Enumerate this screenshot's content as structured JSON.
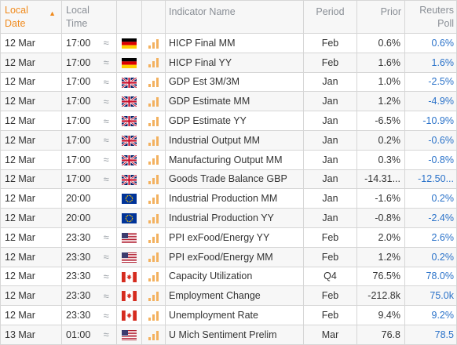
{
  "header": {
    "local_date": "Local Date",
    "local_time": "Local Time",
    "indicator_name": "Indicator Name",
    "period": "Period",
    "prior": "Prior",
    "reuters_poll": "Reuters Poll"
  },
  "rows": [
    {
      "date": "12 Mar",
      "time": "17:00",
      "approx": "≈",
      "flag": "de",
      "impact": 3,
      "name": "HICP Final MM",
      "period": "Feb",
      "prior": "0.6%",
      "poll": "0.6%"
    },
    {
      "date": "12 Mar",
      "time": "17:00",
      "approx": "≈",
      "flag": "de",
      "impact": 3,
      "name": "HICP Final YY",
      "period": "Feb",
      "prior": "1.6%",
      "poll": "1.6%"
    },
    {
      "date": "12 Mar",
      "time": "17:00",
      "approx": "≈",
      "flag": "gb",
      "impact": 3,
      "name": "GDP Est 3M/3M",
      "period": "Jan",
      "prior": "1.0%",
      "poll": "-2.5%"
    },
    {
      "date": "12 Mar",
      "time": "17:00",
      "approx": "≈",
      "flag": "gb",
      "impact": 3,
      "name": "GDP Estimate MM",
      "period": "Jan",
      "prior": "1.2%",
      "poll": "-4.9%"
    },
    {
      "date": "12 Mar",
      "time": "17:00",
      "approx": "≈",
      "flag": "gb",
      "impact": 3,
      "name": "GDP Estimate YY",
      "period": "Jan",
      "prior": "-6.5%",
      "poll": "-10.9%"
    },
    {
      "date": "12 Mar",
      "time": "17:00",
      "approx": "≈",
      "flag": "gb",
      "impact": 3,
      "name": "Industrial Output MM",
      "period": "Jan",
      "prior": "0.2%",
      "poll": "-0.6%"
    },
    {
      "date": "12 Mar",
      "time": "17:00",
      "approx": "≈",
      "flag": "gb",
      "impact": 3,
      "name": "Manufacturing Output MM",
      "period": "Jan",
      "prior": "0.3%",
      "poll": "-0.8%"
    },
    {
      "date": "12 Mar",
      "time": "17:00",
      "approx": "≈",
      "flag": "gb",
      "impact": 3,
      "name": "Goods Trade Balance GBP",
      "period": "Jan",
      "prior": "-14.31...",
      "poll": "-12.50..."
    },
    {
      "date": "12 Mar",
      "time": "20:00",
      "approx": "",
      "flag": "eu",
      "impact": 3,
      "name": "Industrial Production MM",
      "period": "Jan",
      "prior": "-1.6%",
      "poll": "0.2%"
    },
    {
      "date": "12 Mar",
      "time": "20:00",
      "approx": "",
      "flag": "eu",
      "impact": 3,
      "name": "Industrial Production YY",
      "period": "Jan",
      "prior": "-0.8%",
      "poll": "-2.4%"
    },
    {
      "date": "12 Mar",
      "time": "23:30",
      "approx": "≈",
      "flag": "us",
      "impact": 3,
      "name": "PPI exFood/Energy YY",
      "period": "Feb",
      "prior": "2.0%",
      "poll": "2.6%"
    },
    {
      "date": "12 Mar",
      "time": "23:30",
      "approx": "≈",
      "flag": "us",
      "impact": 3,
      "name": "PPI exFood/Energy MM",
      "period": "Feb",
      "prior": "1.2%",
      "poll": "0.2%"
    },
    {
      "date": "12 Mar",
      "time": "23:30",
      "approx": "≈",
      "flag": "ca",
      "impact": 3,
      "name": "Capacity Utilization",
      "period": "Q4",
      "prior": "76.5%",
      "poll": "78.0%"
    },
    {
      "date": "12 Mar",
      "time": "23:30",
      "approx": "≈",
      "flag": "ca",
      "impact": 3,
      "name": "Employment Change",
      "period": "Feb",
      "prior": "-212.8k",
      "poll": "75.0k"
    },
    {
      "date": "12 Mar",
      "time": "23:30",
      "approx": "≈",
      "flag": "ca",
      "impact": 3,
      "name": "Unemployment Rate",
      "period": "Feb",
      "prior": "9.4%",
      "poll": "9.2%"
    },
    {
      "date": "13 Mar",
      "time": "01:00",
      "approx": "≈",
      "flag": "us",
      "impact": 3,
      "name": "U Mich Sentiment Prelim",
      "period": "Mar",
      "prior": "76.8",
      "poll": "78.5"
    }
  ],
  "colors": {
    "accent": "#f08a1c",
    "poll_text": "#2a72c9",
    "impact_bars": "#f3b15f"
  }
}
